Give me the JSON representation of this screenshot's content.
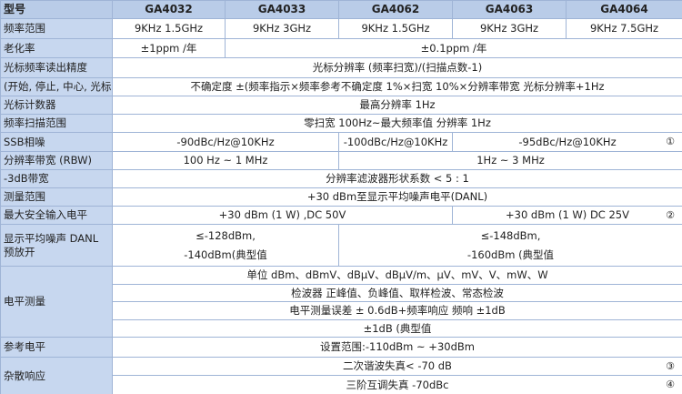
{
  "table": {
    "header": {
      "label": "型号",
      "models": [
        "GA4032",
        "GA4033",
        "GA4062",
        "GA4063",
        "GA4064"
      ]
    },
    "rows": [
      {
        "label": "频率范围",
        "cells": [
          "9KHz  1.5GHz",
          "9KHz  3GHz",
          "9KHz  1.5GHz",
          "9KHz  3GHz",
          "9KHz  7.5GHz"
        ]
      },
      {
        "label": "老化率",
        "cells": [
          "±1ppm /年",
          "±0.1ppm /年"
        ]
      },
      {
        "label": "光标频率读出精度",
        "cells": [
          "光标分辨率  (频率扫宽)/(扫描点数-1)"
        ]
      },
      {
        "label": "(开始, 停止, 中心, 光标)",
        "cells": [
          "不确定度   ±(频率指示×频率参考不确定度   1%×扫宽   10%×分辨率带宽   光标分辨率+1Hz"
        ]
      },
      {
        "label": "光标计数器",
        "cells": [
          "最高分辨率   1Hz"
        ]
      },
      {
        "label": "频率扫描范围",
        "cells": [
          "零扫宽   100Hz~最大频率值   分辨率   1Hz"
        ]
      },
      {
        "label": "SSB相噪",
        "cells": [
          "-90dBc/Hz@10KHz",
          "-100dBc/Hz@10KHz",
          "-95dBc/Hz@10KHz"
        ],
        "note": "①"
      },
      {
        "label": "分辨率带宽 (RBW)",
        "cells": [
          "100 Hz ~ 1 MHz",
          "1Hz ~ 3 MHz"
        ]
      },
      {
        "label": "-3dB带宽",
        "cells": [
          "分辨率滤波器形状系数   < 5 : 1"
        ]
      },
      {
        "label": "测量范围",
        "cells": [
          "+30 dBm至显示平均噪声电平(DANL)"
        ]
      },
      {
        "label": "最大安全输入电平",
        "cells": [
          "+30 dBm (1 W) ,DC   50V",
          "+30 dBm (1 W)   DC   25V"
        ],
        "note": "②"
      },
      {
        "label": [
          "显示平均噪声  DANL",
          "预放开"
        ],
        "cells": [
          [
            "≤-128dBm,",
            "-140dBm(典型值"
          ],
          [
            "≤-148dBm,",
            "-160dBm (典型值"
          ]
        ]
      },
      {
        "label": "电平测量",
        "lines": [
          "单位   dBm、dBmV、dBμV、dBμV/m、μV、mV、V、mW、W",
          "检波器   正峰值、负峰值、取样检波、常态检波",
          "电平测量误差   ±   0.6dB+频率响应      频响   ±1dB",
          "±1dB (典型值"
        ]
      },
      {
        "label": "参考电平",
        "cells": [
          "设置范围:-110dBm ~ +30dBm"
        ]
      },
      {
        "label": "杂散响应",
        "lines": [
          {
            "text": "二次谐波失真< -70 dB",
            "note": "③"
          },
          {
            "text": "三阶互调失真   -70dBc",
            "note": "④"
          }
        ]
      }
    ]
  }
}
